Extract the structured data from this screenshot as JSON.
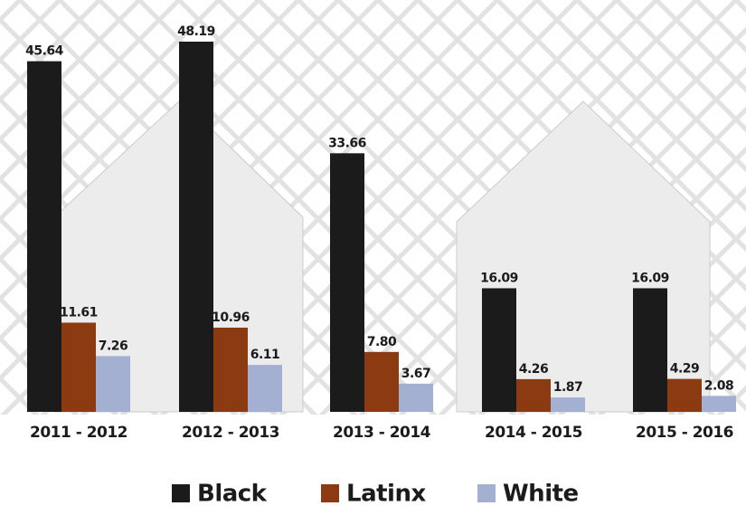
{
  "chart_data": {
    "type": "bar",
    "categories": [
      "2011 - 2012",
      "2012 - 2013",
      "2013 - 2014",
      "2014 - 2015",
      "2015 - 2016"
    ],
    "series": [
      {
        "name": "Black",
        "color": "#1b1b1b",
        "values": [
          45.64,
          48.19,
          33.66,
          16.09,
          16.09
        ],
        "value_labels": [
          "45.64",
          "48.19",
          "33.66",
          "16.09",
          "16.09"
        ]
      },
      {
        "name": "Latinx",
        "color": "#8b3a12",
        "values": [
          11.61,
          10.96,
          7.8,
          4.26,
          4.29
        ],
        "value_labels": [
          "11.61",
          "10.96",
          "7.80",
          "4.26",
          "4.29"
        ]
      },
      {
        "name": "White",
        "color": "#a3b0d2",
        "values": [
          7.26,
          6.11,
          3.67,
          1.87,
          2.08
        ],
        "value_labels": [
          "7.26",
          "6.11",
          "3.67",
          "1.87",
          "2.08"
        ]
      }
    ]
  }
}
